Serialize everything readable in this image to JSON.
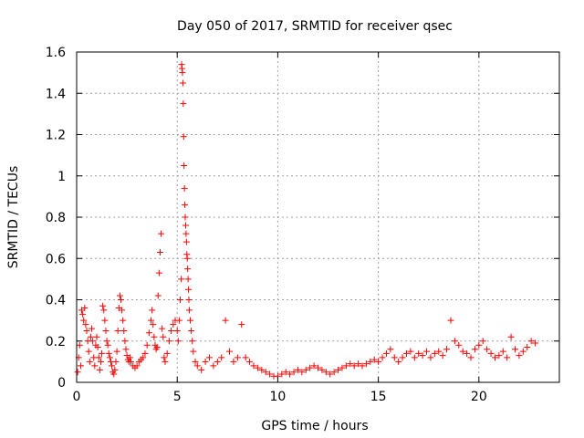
{
  "chart_data": {
    "type": "scatter",
    "title": "Day 050 of 2017, SRMTID for receiver qsec",
    "xlabel": "GPS time / hours",
    "ylabel": "SRMTID / TECUs",
    "xlim": [
      0,
      24
    ],
    "ylim": [
      0,
      1.6
    ],
    "xticks": [
      0,
      5,
      10,
      15,
      20
    ],
    "xtick_labels": [
      "0",
      "5",
      "10",
      "15",
      "20"
    ],
    "yticks": [
      0,
      0.2,
      0.4,
      0.6,
      0.8,
      1.0,
      1.2,
      1.4,
      1.6
    ],
    "ytick_labels": [
      "0",
      "0.2",
      "0.4",
      "0.6",
      "0.8",
      "1",
      "1.2",
      "1.4",
      "1.6"
    ],
    "grid": true,
    "marker": "plus",
    "color": "#ff0000",
    "series": [
      {
        "name": "SRMTID",
        "points": [
          [
            0.05,
            0.05
          ],
          [
            0.1,
            0.12
          ],
          [
            0.15,
            0.18
          ],
          [
            0.2,
            0.08
          ],
          [
            0.25,
            0.35
          ],
          [
            0.3,
            0.33
          ],
          [
            0.35,
            0.3
          ],
          [
            0.4,
            0.36
          ],
          [
            0.45,
            0.28
          ],
          [
            0.5,
            0.25
          ],
          [
            0.55,
            0.2
          ],
          [
            0.6,
            0.15
          ],
          [
            0.65,
            0.1
          ],
          [
            0.7,
            0.22
          ],
          [
            0.75,
            0.26
          ],
          [
            0.8,
            0.2
          ],
          [
            0.85,
            0.12
          ],
          [
            0.9,
            0.08
          ],
          [
            0.95,
            0.18
          ],
          [
            1.0,
            0.22
          ],
          [
            1.05,
            0.17
          ],
          [
            1.1,
            0.12
          ],
          [
            1.15,
            0.06
          ],
          [
            1.2,
            0.1
          ],
          [
            1.25,
            0.14
          ],
          [
            1.3,
            0.37
          ],
          [
            1.35,
            0.35
          ],
          [
            1.4,
            0.3
          ],
          [
            1.45,
            0.25
          ],
          [
            1.5,
            0.2
          ],
          [
            1.55,
            0.18
          ],
          [
            1.6,
            0.14
          ],
          [
            1.65,
            0.12
          ],
          [
            1.7,
            0.1
          ],
          [
            1.75,
            0.08
          ],
          [
            1.8,
            0.05
          ],
          [
            1.85,
            0.04
          ],
          [
            1.9,
            0.06
          ],
          [
            1.95,
            0.1
          ],
          [
            2.0,
            0.15
          ],
          [
            2.05,
            0.25
          ],
          [
            2.1,
            0.36
          ],
          [
            2.15,
            0.42
          ],
          [
            2.2,
            0.4
          ],
          [
            2.25,
            0.35
          ],
          [
            2.3,
            0.3
          ],
          [
            2.35,
            0.25
          ],
          [
            2.4,
            0.2
          ],
          [
            2.45,
            0.16
          ],
          [
            2.5,
            0.13
          ],
          [
            2.55,
            0.11
          ],
          [
            2.6,
            0.1
          ],
          [
            2.65,
            0.12
          ],
          [
            2.7,
            0.1
          ],
          [
            2.8,
            0.08
          ],
          [
            2.9,
            0.07
          ],
          [
            3.0,
            0.08
          ],
          [
            3.1,
            0.1
          ],
          [
            3.2,
            0.11
          ],
          [
            3.3,
            0.12
          ],
          [
            3.4,
            0.14
          ],
          [
            3.5,
            0.18
          ],
          [
            3.6,
            0.24
          ],
          [
            3.7,
            0.3
          ],
          [
            3.75,
            0.35
          ],
          [
            3.8,
            0.28
          ],
          [
            3.85,
            0.22
          ],
          [
            3.9,
            0.18
          ],
          [
            3.95,
            0.16
          ],
          [
            4.0,
            0.17
          ],
          [
            4.05,
            0.42
          ],
          [
            4.1,
            0.53
          ],
          [
            4.15,
            0.63
          ],
          [
            4.2,
            0.72
          ],
          [
            4.25,
            0.26
          ],
          [
            4.3,
            0.22
          ],
          [
            4.35,
            0.12
          ],
          [
            4.4,
            0.1
          ],
          [
            4.5,
            0.14
          ],
          [
            4.6,
            0.2
          ],
          [
            4.7,
            0.25
          ],
          [
            4.8,
            0.28
          ],
          [
            4.9,
            0.3
          ],
          [
            5.0,
            0.25
          ],
          [
            5.05,
            0.2
          ],
          [
            5.1,
            0.3
          ],
          [
            5.15,
            0.4
          ],
          [
            5.2,
            0.5
          ],
          [
            5.22,
            1.54
          ],
          [
            5.24,
            1.52
          ],
          [
            5.26,
            1.5
          ],
          [
            5.28,
            1.45
          ],
          [
            5.3,
            1.35
          ],
          [
            5.32,
            1.19
          ],
          [
            5.34,
            1.05
          ],
          [
            5.36,
            0.94
          ],
          [
            5.38,
            0.86
          ],
          [
            5.4,
            0.8
          ],
          [
            5.42,
            0.76
          ],
          [
            5.44,
            0.72
          ],
          [
            5.46,
            0.68
          ],
          [
            5.48,
            0.62
          ],
          [
            5.5,
            0.6
          ],
          [
            5.52,
            0.55
          ],
          [
            5.54,
            0.5
          ],
          [
            5.56,
            0.45
          ],
          [
            5.58,
            0.4
          ],
          [
            5.6,
            0.35
          ],
          [
            5.65,
            0.3
          ],
          [
            5.7,
            0.25
          ],
          [
            5.75,
            0.2
          ],
          [
            5.8,
            0.15
          ],
          [
            5.9,
            0.1
          ],
          [
            6.0,
            0.08
          ],
          [
            6.2,
            0.06
          ],
          [
            6.4,
            0.1
          ],
          [
            6.6,
            0.12
          ],
          [
            6.8,
            0.08
          ],
          [
            7.0,
            0.1
          ],
          [
            7.2,
            0.12
          ],
          [
            7.4,
            0.3
          ],
          [
            7.6,
            0.15
          ],
          [
            7.8,
            0.1
          ],
          [
            8.0,
            0.12
          ],
          [
            8.2,
            0.28
          ],
          [
            8.4,
            0.12
          ],
          [
            8.6,
            0.1
          ],
          [
            8.8,
            0.08
          ],
          [
            9.0,
            0.07
          ],
          [
            9.2,
            0.06
          ],
          [
            9.4,
            0.05
          ],
          [
            9.6,
            0.04
          ],
          [
            9.8,
            0.03
          ],
          [
            10.0,
            0.03
          ],
          [
            10.2,
            0.04
          ],
          [
            10.4,
            0.05
          ],
          [
            10.6,
            0.04
          ],
          [
            10.8,
            0.05
          ],
          [
            11.0,
            0.06
          ],
          [
            11.2,
            0.05
          ],
          [
            11.4,
            0.06
          ],
          [
            11.6,
            0.07
          ],
          [
            11.8,
            0.08
          ],
          [
            12.0,
            0.07
          ],
          [
            12.2,
            0.06
          ],
          [
            12.4,
            0.05
          ],
          [
            12.6,
            0.04
          ],
          [
            12.8,
            0.05
          ],
          [
            13.0,
            0.06
          ],
          [
            13.2,
            0.07
          ],
          [
            13.4,
            0.08
          ],
          [
            13.6,
            0.09
          ],
          [
            13.8,
            0.08
          ],
          [
            14.0,
            0.09
          ],
          [
            14.2,
            0.08
          ],
          [
            14.4,
            0.09
          ],
          [
            14.6,
            0.1
          ],
          [
            14.8,
            0.11
          ],
          [
            15.0,
            0.1
          ],
          [
            15.2,
            0.12
          ],
          [
            15.4,
            0.14
          ],
          [
            15.6,
            0.16
          ],
          [
            15.8,
            0.12
          ],
          [
            16.0,
            0.1
          ],
          [
            16.2,
            0.12
          ],
          [
            16.4,
            0.14
          ],
          [
            16.6,
            0.15
          ],
          [
            16.8,
            0.12
          ],
          [
            17.0,
            0.14
          ],
          [
            17.2,
            0.13
          ],
          [
            17.4,
            0.15
          ],
          [
            17.6,
            0.12
          ],
          [
            17.8,
            0.14
          ],
          [
            18.0,
            0.15
          ],
          [
            18.2,
            0.13
          ],
          [
            18.4,
            0.16
          ],
          [
            18.6,
            0.3
          ],
          [
            18.8,
            0.2
          ],
          [
            19.0,
            0.18
          ],
          [
            19.2,
            0.15
          ],
          [
            19.4,
            0.14
          ],
          [
            19.6,
            0.12
          ],
          [
            19.8,
            0.16
          ],
          [
            20.0,
            0.18
          ],
          [
            20.2,
            0.2
          ],
          [
            20.4,
            0.16
          ],
          [
            20.6,
            0.14
          ],
          [
            20.8,
            0.12
          ],
          [
            21.0,
            0.13
          ],
          [
            21.2,
            0.15
          ],
          [
            21.4,
            0.12
          ],
          [
            21.6,
            0.22
          ],
          [
            21.8,
            0.16
          ],
          [
            22.0,
            0.13
          ],
          [
            22.2,
            0.15
          ],
          [
            22.4,
            0.17
          ],
          [
            22.6,
            0.2
          ],
          [
            22.8,
            0.19
          ]
        ]
      }
    ]
  }
}
